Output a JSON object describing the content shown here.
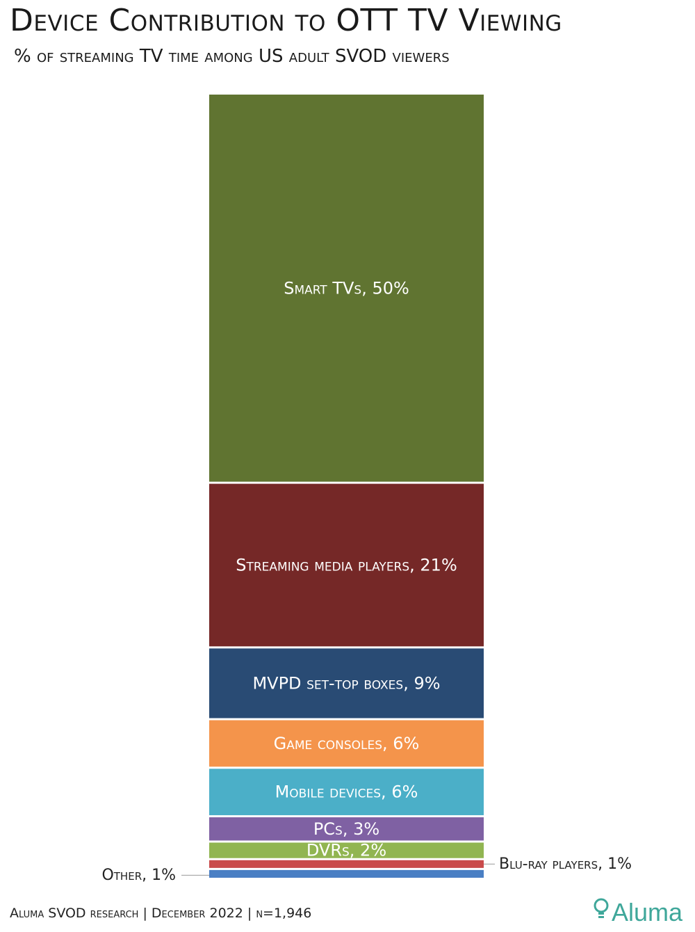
{
  "title": "Device Contribution to OTT TV Viewing",
  "subtitle": "% of streaming TV time among US adult SVOD viewers",
  "footer": {
    "source": "Aluma SVOD research | December 2022 | n=1,946",
    "brand": "Aluma"
  },
  "icons": {
    "brand_icon": "lightbulb-icon"
  },
  "chart_data": {
    "type": "bar",
    "stacked": true,
    "orientation": "vertical",
    "title": "Device Contribution to OTT TV Viewing",
    "subtitle": "% of streaming TV time among US adult SVOD viewers",
    "unit": "%",
    "ylim": [
      0,
      100
    ],
    "grid": false,
    "legend": "none",
    "segments": [
      {
        "name": "Smart TVs",
        "value": 50,
        "label": "Smart TVs, 50%",
        "color": "#607431",
        "label_position": "inside"
      },
      {
        "name": "Streaming media players",
        "value": 21,
        "label": "Streaming media players, 21%",
        "color": "#752827",
        "label_position": "inside"
      },
      {
        "name": "MVPD set-top boxes",
        "value": 9,
        "label": "MVPD set-top boxes, 9%",
        "color": "#294b74",
        "label_position": "inside"
      },
      {
        "name": "Game consoles",
        "value": 6,
        "label": "Game consoles, 6%",
        "color": "#f4944b",
        "label_position": "inside"
      },
      {
        "name": "Mobile devices",
        "value": 6,
        "label": "Mobile devices, 6%",
        "color": "#4bafc8",
        "label_position": "inside"
      },
      {
        "name": "PCs",
        "value": 3,
        "label": "PCs, 3%",
        "color": "#7f61a3",
        "label_position": "inside"
      },
      {
        "name": "DVRs",
        "value": 2,
        "label": "DVRs, 2%",
        "color": "#91b551",
        "label_position": "inside"
      },
      {
        "name": "Blu-ray players",
        "value": 1,
        "label": "Blu-ray players, 1%",
        "color": "#c94b4b",
        "label_position": "right"
      },
      {
        "name": "Other",
        "value": 1,
        "label": "Other, 1%",
        "color": "#4a7fc4",
        "label_position": "left"
      }
    ]
  }
}
